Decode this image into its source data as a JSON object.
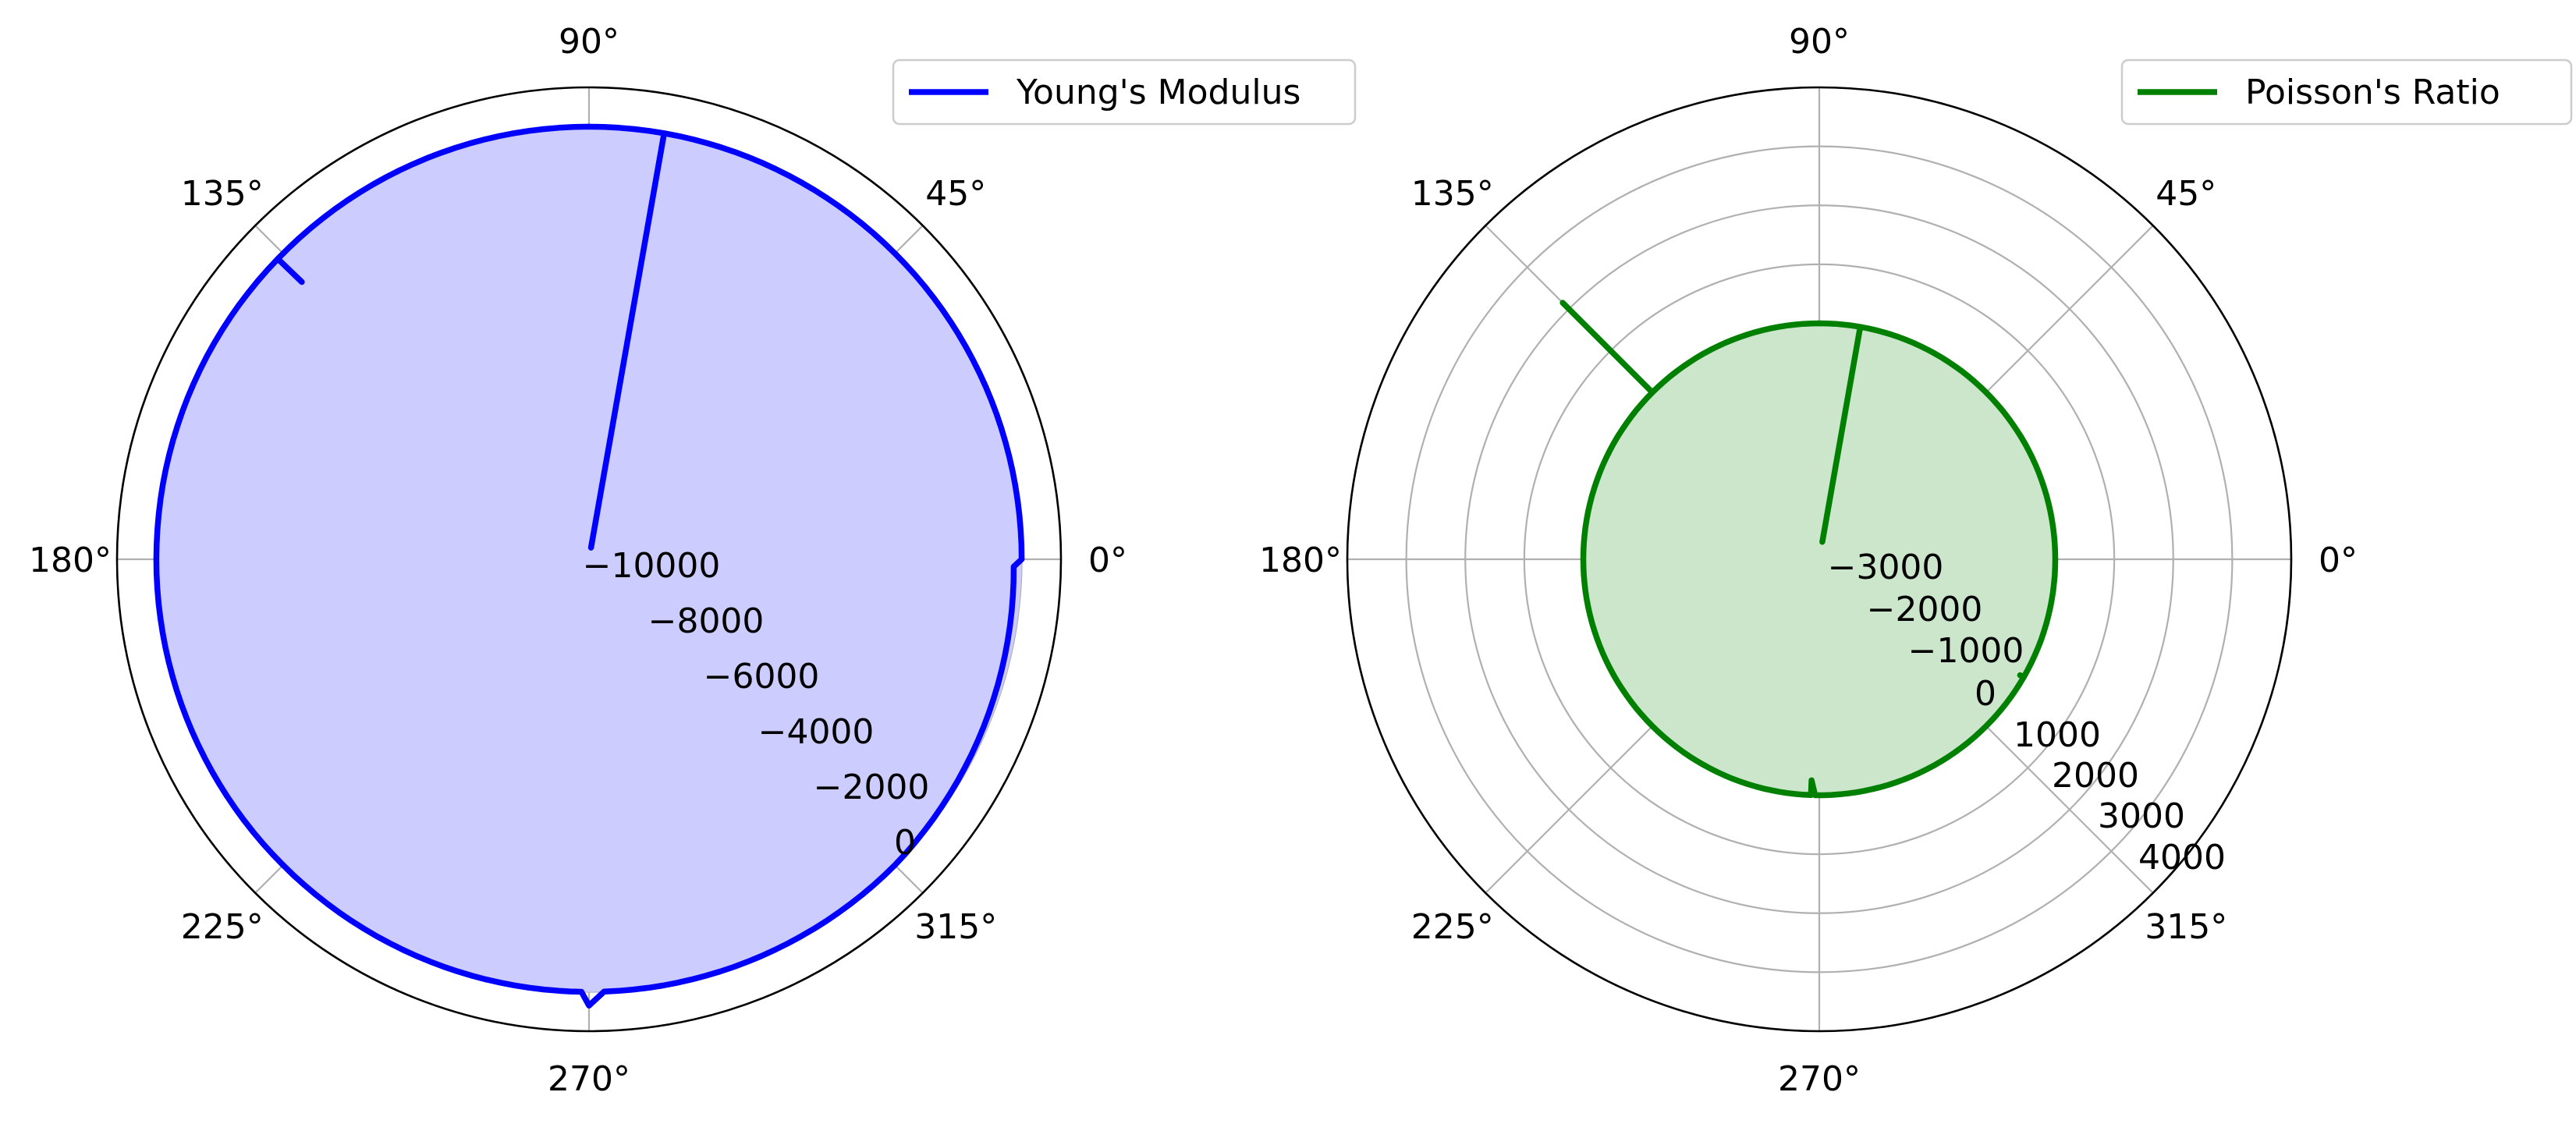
{
  "chart_data": [
    {
      "type": "polar-line",
      "title": "",
      "color": "#0000ff",
      "fill_color": "#ccccff",
      "theta_ticks": [
        "0°",
        "45°",
        "90°",
        "135°",
        "180°",
        "225°",
        "270°",
        "315°"
      ],
      "r_ticks": [
        -10000,
        -8000,
        -6000,
        -4000,
        -2000,
        0
      ],
      "r_tick_labels": [
        "−10000",
        "−8000",
        "−6000",
        "−4000",
        "−2000",
        "0"
      ],
      "r_range": [
        -11000,
        1000
      ],
      "grid": true,
      "legend": "top-right",
      "series": [
        {
          "name": "Young's Modulus",
          "theta_deg": [
            0,
            45,
            80,
            80,
            80,
            90,
            136,
            136,
            136,
            180,
            225,
            266,
            269,
            270,
            272,
            315,
            359,
            360
          ],
          "r": [
            0,
            0,
            0,
            -10700,
            0,
            0,
            0,
            -850,
            0,
            0,
            0,
            0,
            0,
            350,
            0,
            0,
            -200,
            0
          ]
        }
      ]
    },
    {
      "type": "polar-line",
      "title": "",
      "color": "#008000",
      "fill_color": "#cce6cc",
      "theta_ticks": [
        "0°",
        "45°",
        "90°",
        "135°",
        "180°",
        "225°",
        "270°",
        "315°"
      ],
      "r_ticks": [
        -3000,
        -2000,
        -1000,
        0,
        1000,
        2000,
        3000,
        4000
      ],
      "r_tick_labels": [
        "−3000",
        "−2000",
        "−1000",
        "0",
        "1000",
        "2000",
        "3000",
        "4000"
      ],
      "r_range": [
        -4000,
        4000
      ],
      "grid": true,
      "legend": "top-right",
      "series": [
        {
          "name": "Poisson's Ratio",
          "theta_deg": [
            0,
            45,
            80,
            80,
            80,
            90,
            135,
            135,
            135,
            180,
            225,
            268,
            268,
            269,
            315,
            330,
            330,
            330,
            360
          ],
          "r": [
            0,
            0,
            0,
            -3700,
            0,
            0,
            0,
            2150,
            0,
            0,
            0,
            0,
            -250,
            0,
            0,
            0,
            -70,
            0,
            0
          ]
        }
      ]
    }
  ]
}
